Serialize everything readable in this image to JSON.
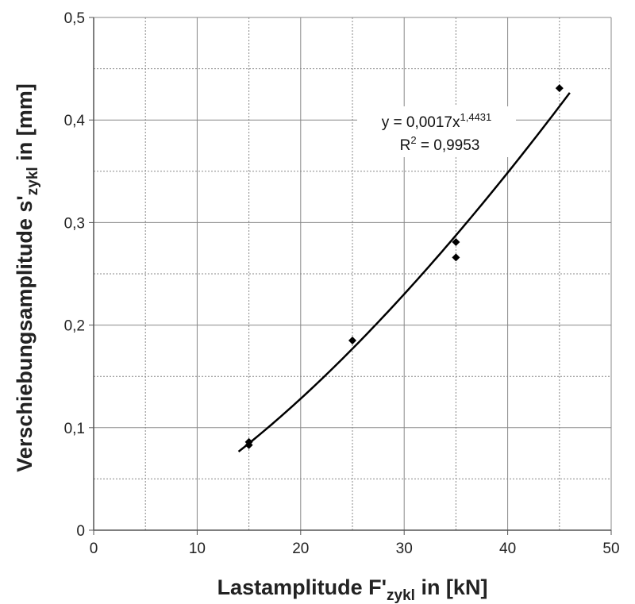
{
  "chart_data": {
    "type": "scatter",
    "xlim": [
      0,
      50
    ],
    "ylim": [
      0,
      0.5
    ],
    "x_ticks": [
      "0",
      "10",
      "20",
      "30",
      "40",
      "50"
    ],
    "y_ticks": [
      "0",
      "0,1",
      "0,2",
      "0,3",
      "0,4",
      "0,5"
    ],
    "grid": {
      "major": true,
      "minor_dashed": true
    },
    "xlabel": {
      "pre": "Lastamplitude F'",
      "sub": "zykl",
      "post": " in [kN]"
    },
    "ylabel": {
      "pre": "Verschiebungsamplitude s'",
      "sub": "zykl",
      "post": " in [mm]"
    },
    "points": [
      {
        "x": 15,
        "y": 0.083
      },
      {
        "x": 15,
        "y": 0.086
      },
      {
        "x": 25,
        "y": 0.185
      },
      {
        "x": 35,
        "y": 0.281
      },
      {
        "x": 35,
        "y": 0.266
      },
      {
        "x": 45,
        "y": 0.431
      }
    ],
    "trendline": {
      "type": "power",
      "coefficient": 0.0017,
      "exponent": 1.4431,
      "x_range": [
        14,
        46
      ],
      "equation": {
        "pre": "y = 0,0017x",
        "sup": "1,4431"
      },
      "r2": {
        "pre": "R",
        "sup": "2",
        "post": " = 0,9953"
      }
    },
    "colors": {
      "marker": "#000000",
      "line": "#000000",
      "grid": "#888888"
    }
  }
}
